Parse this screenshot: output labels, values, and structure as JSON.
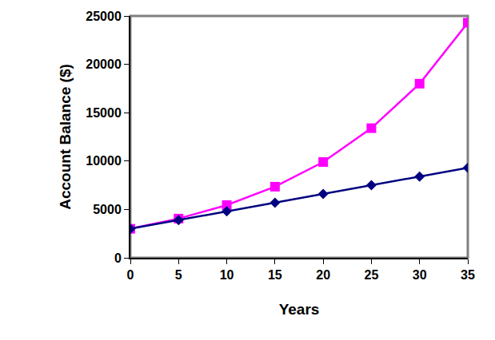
{
  "chart_data": {
    "type": "line",
    "x_label": "Years",
    "y_label": "Account Balance ($)",
    "x": [
      0,
      5,
      10,
      15,
      20,
      25,
      30,
      35
    ],
    "series": [
      {
        "color": "#ff00ff",
        "marker": "square",
        "line_style": "solid",
        "values": [
          3000,
          4050,
          5450,
          7350,
          9900,
          13400,
          18000,
          24300
        ]
      },
      {
        "color": "#000080",
        "marker": "diamond",
        "line_style": "solid",
        "values": [
          3000,
          3900,
          4800,
          5700,
          6600,
          7500,
          8400,
          9300
        ]
      }
    ],
    "xlim": [
      0,
      35
    ],
    "xticks": [
      0,
      5,
      10,
      15,
      20,
      25,
      30,
      35
    ],
    "ylim": [
      0,
      25000
    ],
    "yticks": [
      0,
      5000,
      10000,
      15000,
      20000,
      25000
    ],
    "grid": false
  }
}
